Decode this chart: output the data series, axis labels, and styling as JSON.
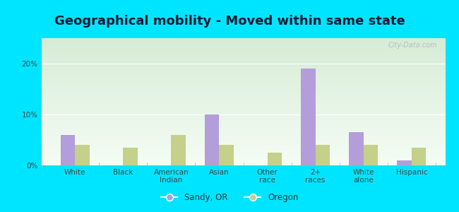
{
  "title": "Geographical mobility - Moved within same state",
  "categories": [
    "White",
    "Black",
    "American\nIndian",
    "Asian",
    "Other\nrace",
    "2+\nraces",
    "White\nalone",
    "Hispanic"
  ],
  "sandy_or": [
    6.0,
    0.0,
    0.0,
    10.0,
    0.0,
    19.0,
    6.5,
    1.0
  ],
  "oregon": [
    4.0,
    3.5,
    6.0,
    4.0,
    2.5,
    4.0,
    4.0,
    3.5
  ],
  "sandy_color": "#b39ddb",
  "oregon_color": "#c5d08a",
  "outer_bg": "#00e5ff",
  "grad_top": "#d6ecd6",
  "grad_bot": "#f5fdf5",
  "ylim": [
    0,
    25
  ],
  "yticks": [
    0,
    10,
    20
  ],
  "ytick_labels": [
    "0%",
    "10%",
    "20%"
  ],
  "legend_sandy": "Sandy, OR",
  "legend_oregon": "Oregon",
  "bar_width": 0.3,
  "title_fontsize": 13,
  "tick_fontsize": 7.5,
  "watermark": "City-Data.com"
}
